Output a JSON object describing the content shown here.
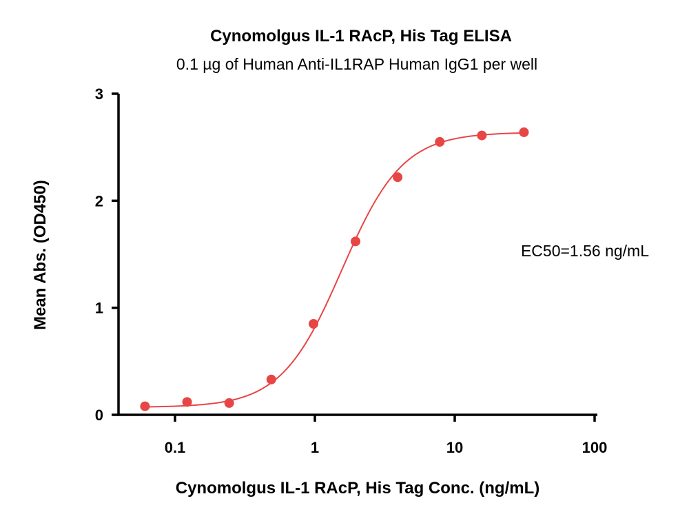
{
  "chart_data": {
    "type": "scatter",
    "title": "Cynomolgus IL-1 RAcP, His Tag ELISA",
    "subtitle": "0.1 µg of Human Anti-IL1RAP Human IgG1 per well",
    "xlabel": "Cynomolgus IL-1 RAcP, His Tag Conc. (ng/mL)",
    "ylabel": "Mean Abs. (OD450)",
    "x_scale": "log",
    "xlim": [
      0.04,
      100
    ],
    "ylim": [
      0,
      3
    ],
    "x_ticks": [
      {
        "value": 0.1,
        "label": "0.1"
      },
      {
        "value": 1,
        "label": "1"
      },
      {
        "value": 10,
        "label": "10"
      },
      {
        "value": 100,
        "label": "100"
      }
    ],
    "y_ticks": [
      {
        "value": 0,
        "label": "0"
      },
      {
        "value": 1,
        "label": "1"
      },
      {
        "value": 2,
        "label": "2"
      },
      {
        "value": 3,
        "label": "3"
      }
    ],
    "grid": false,
    "series": [
      {
        "color": "#e84545",
        "x": [
          0.061,
          0.122,
          0.244,
          0.488,
          0.977,
          1.953,
          3.906,
          7.813,
          15.625,
          31.25
        ],
        "y": [
          0.08,
          0.12,
          0.11,
          0.33,
          0.85,
          1.62,
          2.22,
          2.55,
          2.61,
          2.64
        ]
      }
    ],
    "fit": {
      "model": "4PL",
      "bottom": 0.07,
      "top": 2.64,
      "ec50": 1.56,
      "hill": 2.0,
      "color": "#e84545"
    },
    "annotation": "EC50=1.56 ng/mL"
  }
}
